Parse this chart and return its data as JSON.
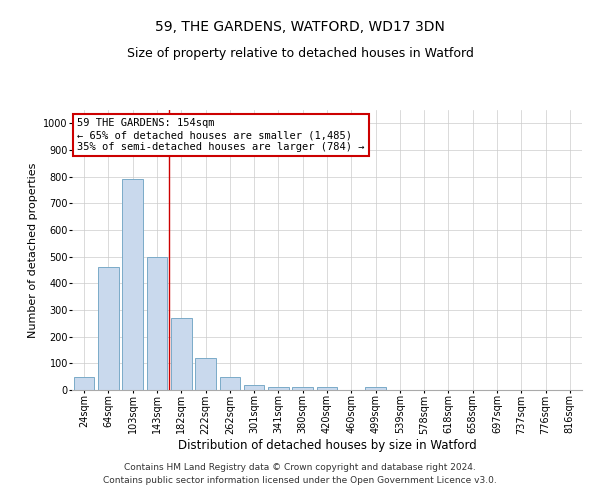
{
  "title": "59, THE GARDENS, WATFORD, WD17 3DN",
  "subtitle": "Size of property relative to detached houses in Watford",
  "xlabel": "Distribution of detached houses by size in Watford",
  "ylabel": "Number of detached properties",
  "categories": [
    "24sqm",
    "64sqm",
    "103sqm",
    "143sqm",
    "182sqm",
    "222sqm",
    "262sqm",
    "301sqm",
    "341sqm",
    "380sqm",
    "420sqm",
    "460sqm",
    "499sqm",
    "539sqm",
    "578sqm",
    "618sqm",
    "658sqm",
    "697sqm",
    "737sqm",
    "776sqm",
    "816sqm"
  ],
  "values": [
    47,
    460,
    790,
    500,
    270,
    120,
    50,
    18,
    13,
    10,
    13,
    0,
    10,
    0,
    0,
    0,
    0,
    0,
    0,
    0,
    0
  ],
  "bar_color": "#c9d9ed",
  "bar_edge_color": "#7aaac8",
  "vline_x": 3.5,
  "vline_color": "#cc0000",
  "annotation_box_text": "59 THE GARDENS: 154sqm\n← 65% of detached houses are smaller (1,485)\n35% of semi-detached houses are larger (784) →",
  "annotation_box_color": "#cc0000",
  "annotation_box_fill": "#ffffff",
  "ylim": [
    0,
    1050
  ],
  "yticks": [
    0,
    100,
    200,
    300,
    400,
    500,
    600,
    700,
    800,
    900,
    1000
  ],
  "grid_color": "#cccccc",
  "background_color": "#ffffff",
  "footer1": "Contains HM Land Registry data © Crown copyright and database right 2024.",
  "footer2": "Contains public sector information licensed under the Open Government Licence v3.0.",
  "title_fontsize": 10,
  "subtitle_fontsize": 9,
  "xlabel_fontsize": 8.5,
  "ylabel_fontsize": 8,
  "tick_fontsize": 7,
  "footer_fontsize": 6.5,
  "ann_fontsize": 7.5
}
